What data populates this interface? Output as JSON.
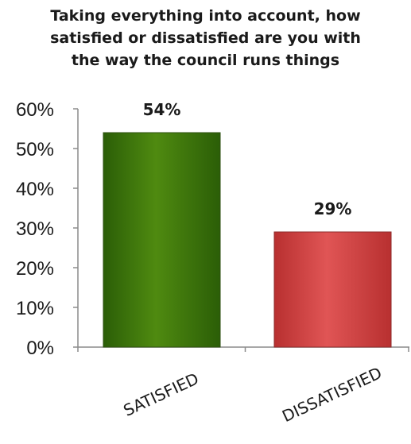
{
  "chart_data": {
    "type": "bar",
    "title_lines": [
      "Taking everything into account, how",
      "satisfied or dissatisfied are you with",
      "the way the council runs things"
    ],
    "categories": [
      "SATISFIED",
      "DISSATISFIED"
    ],
    "values": [
      54,
      29
    ],
    "data_labels": [
      "54%",
      "29%"
    ],
    "y_ticks": [
      "0%",
      "10%",
      "20%",
      "30%",
      "40%",
      "50%",
      "60%"
    ],
    "ylim": [
      0,
      60
    ],
    "grid": false,
    "legend": "none",
    "colors": {
      "satisfied_top": "#4f8a10",
      "satisfied_bottom": "#2b5e07",
      "satisfied_edge": "#2d4f10",
      "dissatisfied_top": "#e05555",
      "dissatisfied_bottom": "#b83030",
      "dissatisfied_edge": "#8c2a2a",
      "axis": "#8c8c8c"
    }
  }
}
